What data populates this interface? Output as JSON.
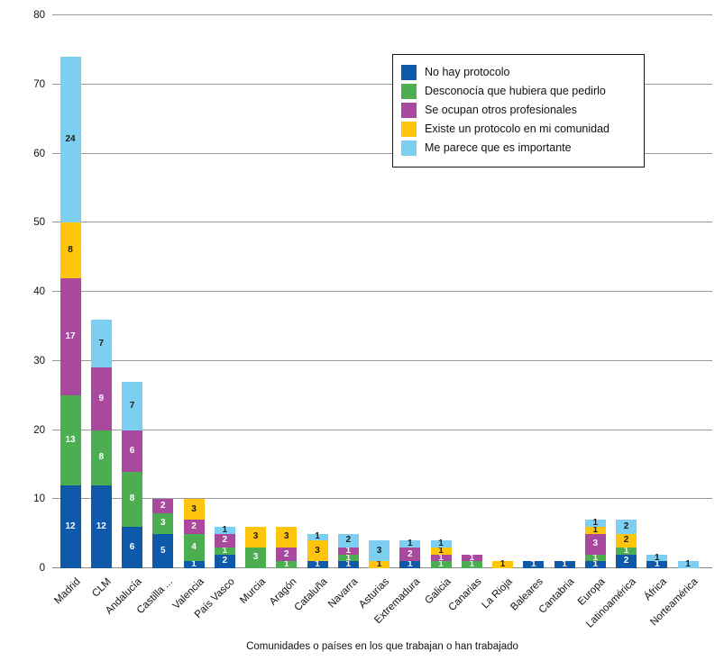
{
  "chart_data": {
    "type": "bar",
    "stacked": true,
    "title": "",
    "xlabel": "Comunidades o países en los que trabajan o han trabajado",
    "ylabel": "",
    "ylim": [
      0,
      80
    ],
    "ytick_step": 10,
    "grid": true,
    "legend_position": "top-right",
    "value_labels": true,
    "gridline_color": "#999999",
    "categories": [
      "Madrid",
      "CLM",
      "Andalucía",
      "Castilla ...",
      "Valencia",
      "País Vasco",
      "Murcia",
      "Aragón",
      "Cataluña",
      "Navarra",
      "Asturias",
      "Extremadura",
      "Galicia",
      "Canarias",
      "La Rioja",
      "Baleares",
      "Cantabria",
      "Europa",
      "Latinoamérica",
      "África",
      "Norteamérica"
    ],
    "series": [
      {
        "name": "No hay protocolo",
        "color": "#0E59A9",
        "label_color": "#ffffff",
        "values": [
          12,
          12,
          6,
          5,
          1,
          2,
          0,
          0,
          1,
          1,
          0,
          1,
          0,
          0,
          0,
          1,
          1,
          1,
          2,
          1,
          0
        ]
      },
      {
        "name": "Desconocía que hubiera que pedirlo",
        "color": "#4CAE50",
        "label_color": "#ffffff",
        "values": [
          13,
          8,
          8,
          3,
          4,
          1,
          3,
          1,
          0,
          1,
          0,
          0,
          1,
          1,
          0,
          0,
          0,
          1,
          1,
          0,
          0
        ]
      },
      {
        "name": "Se ocupan otros profesionales",
        "color": "#A8499E",
        "label_color": "#ffffff",
        "values": [
          17,
          9,
          6,
          2,
          2,
          2,
          0,
          2,
          0,
          1,
          0,
          2,
          1,
          1,
          0,
          0,
          0,
          3,
          0,
          0,
          0
        ]
      },
      {
        "name": "Existe un protocolo en mi comunidad",
        "color": "#FFC50A",
        "label_color": "#1a1a1a",
        "values": [
          8,
          0,
          0,
          0,
          3,
          0,
          3,
          3,
          3,
          0,
          1,
          0,
          1,
          0,
          1,
          0,
          0,
          1,
          2,
          0,
          0
        ]
      },
      {
        "name": "Me parece que es importante",
        "color": "#7DCFF1",
        "label_color": "#1a1a1a",
        "values": [
          24,
          7,
          7,
          0,
          0,
          1,
          0,
          0,
          1,
          2,
          3,
          1,
          1,
          0,
          0,
          0,
          0,
          1,
          2,
          1,
          1
        ]
      }
    ]
  }
}
